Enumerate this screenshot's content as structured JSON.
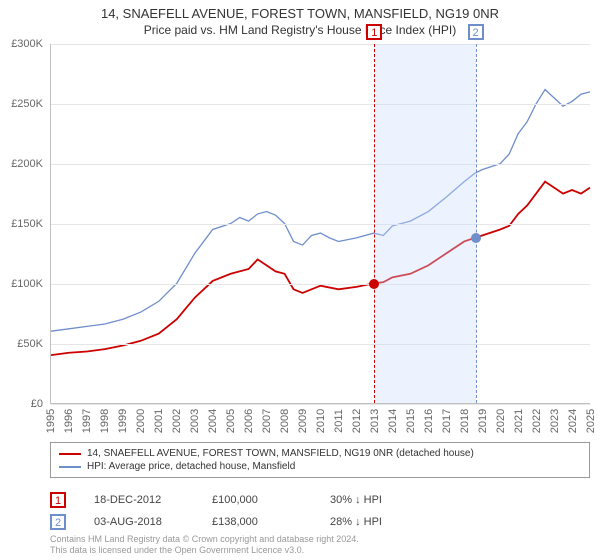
{
  "title": "14, SNAEFELL AVENUE, FOREST TOWN, MANSFIELD, NG19 0NR",
  "subtitle": "Price paid vs. HM Land Registry's House Price Index (HPI)",
  "chart": {
    "type": "line",
    "background_color": "#ffffff",
    "grid_color": "#e6e6e6",
    "axis_color": "#c0c0c0",
    "tick_font_size": 11,
    "tick_color": "#666666",
    "y": {
      "min": 0,
      "max": 300000,
      "step": 50000,
      "labels": [
        "£0",
        "£50K",
        "£100K",
        "£150K",
        "£200K",
        "£250K",
        "£300K"
      ]
    },
    "x": {
      "min": 1995,
      "max": 2025,
      "step": 1,
      "labels": [
        "1995",
        "1996",
        "1997",
        "1998",
        "1999",
        "2000",
        "2001",
        "2002",
        "2003",
        "2004",
        "2005",
        "2006",
        "2007",
        "2008",
        "2009",
        "2010",
        "2011",
        "2012",
        "2013",
        "2014",
        "2015",
        "2016",
        "2017",
        "2018",
        "2019",
        "2020",
        "2021",
        "2022",
        "2023",
        "2024",
        "2025"
      ]
    },
    "highlight_band": {
      "from": 2012.96,
      "to": 2018.59,
      "color": "rgba(200,220,255,0.35)"
    },
    "markers": [
      {
        "id": "1",
        "x": 2012.96,
        "y": 100000,
        "color": "#cc0000"
      },
      {
        "id": "2",
        "x": 2018.59,
        "y": 138000,
        "color": "#6f8ecc"
      }
    ],
    "series": [
      {
        "name": "14, SNAEFELL AVENUE, FOREST TOWN, MANSFIELD, NG19 0NR (detached house)",
        "color": "#cc0000",
        "width": 1.8,
        "data": [
          [
            1995,
            40000
          ],
          [
            1996,
            42000
          ],
          [
            1997,
            43000
          ],
          [
            1998,
            45000
          ],
          [
            1999,
            48000
          ],
          [
            2000,
            52000
          ],
          [
            2001,
            58000
          ],
          [
            2002,
            70000
          ],
          [
            2003,
            88000
          ],
          [
            2004,
            102000
          ],
          [
            2005,
            108000
          ],
          [
            2006,
            112000
          ],
          [
            2006.5,
            120000
          ],
          [
            2007,
            115000
          ],
          [
            2007.5,
            110000
          ],
          [
            2008,
            108000
          ],
          [
            2008.5,
            95000
          ],
          [
            2009,
            92000
          ],
          [
            2010,
            98000
          ],
          [
            2011,
            95000
          ],
          [
            2012,
            97000
          ],
          [
            2012.96,
            100000
          ],
          [
            2013.5,
            101000
          ],
          [
            2014,
            105000
          ],
          [
            2015,
            108000
          ],
          [
            2016,
            115000
          ],
          [
            2017,
            125000
          ],
          [
            2018,
            135000
          ],
          [
            2018.59,
            138000
          ],
          [
            2019,
            140000
          ],
          [
            2020,
            145000
          ],
          [
            2020.5,
            148000
          ],
          [
            2021,
            158000
          ],
          [
            2021.5,
            165000
          ],
          [
            2022,
            175000
          ],
          [
            2022.5,
            185000
          ],
          [
            2023,
            180000
          ],
          [
            2023.5,
            175000
          ],
          [
            2024,
            178000
          ],
          [
            2024.5,
            175000
          ],
          [
            2025,
            180000
          ]
        ]
      },
      {
        "name": "HPI: Average price, detached house, Mansfield",
        "color": "#6f8ecc",
        "width": 1.3,
        "data": [
          [
            1995,
            60000
          ],
          [
            1996,
            62000
          ],
          [
            1997,
            64000
          ],
          [
            1998,
            66000
          ],
          [
            1999,
            70000
          ],
          [
            2000,
            76000
          ],
          [
            2001,
            85000
          ],
          [
            2002,
            100000
          ],
          [
            2003,
            125000
          ],
          [
            2004,
            145000
          ],
          [
            2005,
            150000
          ],
          [
            2005.5,
            155000
          ],
          [
            2006,
            152000
          ],
          [
            2006.5,
            158000
          ],
          [
            2007,
            160000
          ],
          [
            2007.5,
            157000
          ],
          [
            2008,
            150000
          ],
          [
            2008.5,
            135000
          ],
          [
            2009,
            132000
          ],
          [
            2009.5,
            140000
          ],
          [
            2010,
            142000
          ],
          [
            2010.5,
            138000
          ],
          [
            2011,
            135000
          ],
          [
            2012,
            138000
          ],
          [
            2012.96,
            142000
          ],
          [
            2013.5,
            140000
          ],
          [
            2014,
            148000
          ],
          [
            2015,
            152000
          ],
          [
            2016,
            160000
          ],
          [
            2017,
            172000
          ],
          [
            2018,
            185000
          ],
          [
            2018.59,
            192000
          ],
          [
            2019,
            195000
          ],
          [
            2020,
            200000
          ],
          [
            2020.5,
            208000
          ],
          [
            2021,
            225000
          ],
          [
            2021.5,
            235000
          ],
          [
            2022,
            250000
          ],
          [
            2022.5,
            262000
          ],
          [
            2023,
            255000
          ],
          [
            2023.5,
            248000
          ],
          [
            2024,
            252000
          ],
          [
            2024.5,
            258000
          ],
          [
            2025,
            260000
          ]
        ]
      }
    ]
  },
  "legend": {
    "border_color": "#999999",
    "font_size": 10,
    "items": [
      {
        "label": "14, SNAEFELL AVENUE, FOREST TOWN, MANSFIELD, NG19 0NR (detached house)",
        "color": "#cc0000"
      },
      {
        "label": "HPI: Average price, detached house, Mansfield",
        "color": "#6f8ecc"
      }
    ]
  },
  "marker_rows": [
    {
      "id": "1",
      "color": "#cc0000",
      "date": "18-DEC-2012",
      "price": "£100,000",
      "pct": "30% ↓ HPI"
    },
    {
      "id": "2",
      "color": "#6f8ecc",
      "date": "03-AUG-2018",
      "price": "£138,000",
      "pct": "28% ↓ HPI"
    }
  ],
  "footnote_line1": "Contains HM Land Registry data © Crown copyright and database right 2024.",
  "footnote_line2": "This data is licensed under the Open Government Licence v3.0."
}
